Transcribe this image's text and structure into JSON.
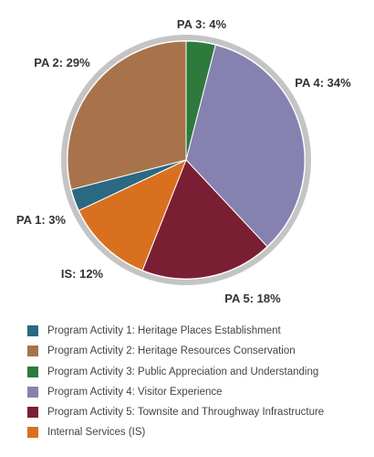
{
  "chart_data": {
    "type": "pie",
    "title": "",
    "slices": [
      {
        "label": "PA 3: 4%",
        "value": 4,
        "color": "#2d7a3c"
      },
      {
        "label": "PA 4: 34%",
        "value": 34,
        "color": "#8682b0"
      },
      {
        "label": "PA 5: 18%",
        "value": 18,
        "color": "#7a1f33"
      },
      {
        "label": "IS: 12%",
        "value": 12,
        "color": "#d9701f"
      },
      {
        "label": "PA 1: 3%",
        "value": 3,
        "color": "#2b6882"
      },
      {
        "label": "PA 2: 29%",
        "value": 29,
        "color": "#a8734b"
      }
    ],
    "legend": [
      {
        "text": "Program Activity 1: Heritage Places Establishment",
        "color": "#2b6882"
      },
      {
        "text": "Program Activity 2: Heritage Resources Conservation",
        "color": "#a8734b"
      },
      {
        "text": "Program Activity 3: Public Appreciation and Understanding",
        "color": "#2d7a3c"
      },
      {
        "text": "Program Activity 4: Visitor Experience",
        "color": "#8682b0"
      },
      {
        "text": "Program Activity 5: Townsite and Throughway Infrastructure",
        "color": "#7a1f33"
      },
      {
        "text": "Internal Services (IS)",
        "color": "#d9701f"
      }
    ],
    "legend_placement": "bottom",
    "ring_color": "#c4c4c4"
  }
}
